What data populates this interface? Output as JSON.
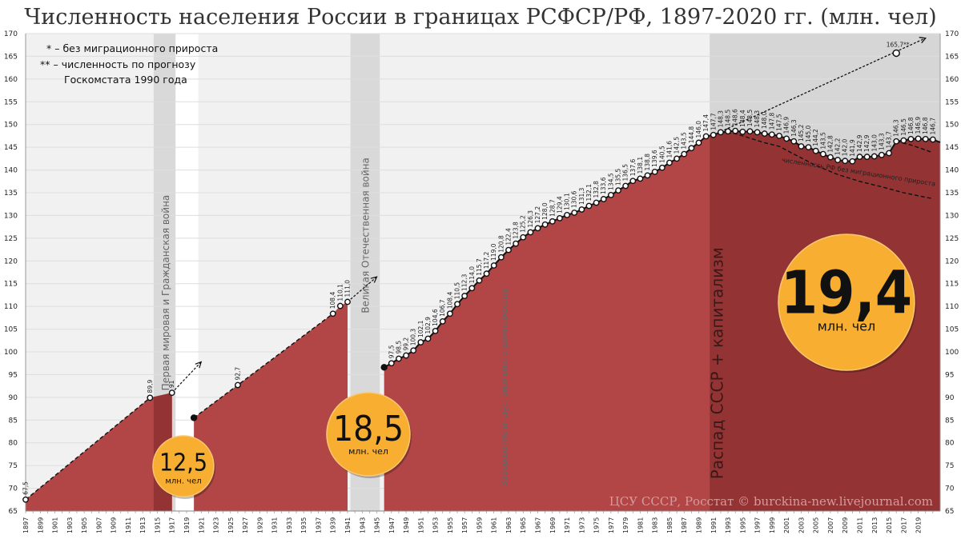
{
  "chart_data": {
    "type": "area",
    "title": "Численность населения России в границах РСФСР/РФ, 1897-2020 гг. (млн. чел)",
    "ylim": [
      65,
      170
    ],
    "y_ticks": [
      65,
      70,
      75,
      80,
      85,
      90,
      95,
      100,
      105,
      110,
      115,
      120,
      125,
      130,
      135,
      140,
      145,
      150,
      155,
      160,
      165,
      170
    ],
    "x_tick_labels": [
      "1897",
      "1899",
      "1901",
      "1903",
      "1905",
      "1907",
      "1909",
      "1911",
      "1913",
      "1915",
      "1917",
      "1919",
      "1921",
      "1923",
      "1925",
      "1927",
      "1929",
      "1931",
      "1933",
      "1935",
      "1937",
      "1939",
      "1941",
      "1943",
      "1945",
      "1947",
      "1949",
      "1951",
      "1953",
      "1955",
      "1957",
      "1959",
      "1961",
      "1963",
      "1965",
      "1967",
      "1969",
      "1971",
      "1973",
      "1975",
      "1977",
      "1979",
      "1981",
      "1983",
      "1985",
      "1987",
      "1989",
      "1991",
      "1993",
      "1995",
      "1997",
      "1999",
      "2001",
      "2003",
      "2005",
      "2007",
      "2009",
      "2011",
      "2013",
      "2015",
      "2017",
      "2019"
    ],
    "grid": true,
    "colors": {
      "area": "#b24646",
      "area_dark": "#943333",
      "line": "#111111",
      "bubble": "#f7ae31",
      "band_gray": "#d9d9d9",
      "plot_bg": "#f1f1f1"
    },
    "series": [
      {
        "name": "",
        "points": [
          {
            "x": 1897,
            "y": 67.5,
            "label": "67,5"
          },
          {
            "x": 1914,
            "y": 89.9,
            "label": "89,9"
          },
          {
            "x": 1917,
            "y": 91.0,
            "label": "91"
          },
          {
            "x": 1920,
            "y": 85.5,
            "label": ""
          },
          {
            "x": 1926,
            "y": 92.7,
            "label": "92,7"
          },
          {
            "x": 1939,
            "y": 108.4,
            "label": "108,4"
          },
          {
            "x": 1940,
            "y": 110.1,
            "label": "110,1"
          },
          {
            "x": 1941,
            "y": 111.0,
            "label": "111,0"
          },
          {
            "x": 1946,
            "y": 96.6,
            "label": ""
          },
          {
            "x": 1947,
            "y": 97.5,
            "label": "97,5"
          },
          {
            "x": 1948,
            "y": 98.5,
            "label": "98,5"
          },
          {
            "x": 1949,
            "y": 99.2,
            "label": "99,2"
          },
          {
            "x": 1950,
            "y": 100.3,
            "label": "100,3"
          },
          {
            "x": 1951,
            "y": 102.1,
            "label": "102,1"
          },
          {
            "x": 1952,
            "y": 102.9,
            "label": "102,9"
          },
          {
            "x": 1953,
            "y": 104.6,
            "label": "104,6"
          },
          {
            "x": 1954,
            "y": 106.7,
            "label": "106,7"
          },
          {
            "x": 1955,
            "y": 108.4,
            "label": "108,4"
          },
          {
            "x": 1956,
            "y": 110.5,
            "label": "110,5"
          },
          {
            "x": 1957,
            "y": 112.3,
            "label": "112,3"
          },
          {
            "x": 1958,
            "y": 114.0,
            "label": "114,0"
          },
          {
            "x": 1959,
            "y": 115.7,
            "label": "115,7"
          },
          {
            "x": 1960,
            "y": 117.2,
            "label": "117,2"
          },
          {
            "x": 1961,
            "y": 119.0,
            "label": "119,0"
          },
          {
            "x": 1962,
            "y": 120.8,
            "label": "120,8"
          },
          {
            "x": 1963,
            "y": 122.4,
            "label": "122,4"
          },
          {
            "x": 1964,
            "y": 123.8,
            "label": "123,8"
          },
          {
            "x": 1965,
            "y": 125.2,
            "label": "125,2"
          },
          {
            "x": 1966,
            "y": 126.3,
            "label": "126,3"
          },
          {
            "x": 1967,
            "y": 127.2,
            "label": "127,2"
          },
          {
            "x": 1968,
            "y": 128.0,
            "label": "128,0"
          },
          {
            "x": 1969,
            "y": 128.7,
            "label": "128,7"
          },
          {
            "x": 1970,
            "y": 129.4,
            "label": "129,4"
          },
          {
            "x": 1971,
            "y": 130.1,
            "label": "130,1"
          },
          {
            "x": 1972,
            "y": 130.6,
            "label": "130,6"
          },
          {
            "x": 1973,
            "y": 131.3,
            "label": "131,3"
          },
          {
            "x": 1974,
            "y": 132.1,
            "label": "132,1"
          },
          {
            "x": 1975,
            "y": 132.8,
            "label": "132,8"
          },
          {
            "x": 1976,
            "y": 133.6,
            "label": "133,6"
          },
          {
            "x": 1977,
            "y": 134.5,
            "label": "134,5"
          },
          {
            "x": 1978,
            "y": 135.5,
            "label": "135,5"
          },
          {
            "x": 1979,
            "y": 136.5,
            "label": "136,5"
          },
          {
            "x": 1980,
            "y": 137.6,
            "label": "137,6"
          },
          {
            "x": 1981,
            "y": 138.1,
            "label": "138,1"
          },
          {
            "x": 1982,
            "y": 138.8,
            "label": "138,8"
          },
          {
            "x": 1983,
            "y": 139.6,
            "label": "139,6"
          },
          {
            "x": 1984,
            "y": 140.5,
            "label": "140,5"
          },
          {
            "x": 1985,
            "y": 141.6,
            "label": "141,6"
          },
          {
            "x": 1986,
            "y": 142.5,
            "label": "142,5"
          },
          {
            "x": 1987,
            "y": 143.5,
            "label": "143,5"
          },
          {
            "x": 1988,
            "y": 144.8,
            "label": "144,8"
          },
          {
            "x": 1989,
            "y": 146.0,
            "label": "146,0"
          },
          {
            "x": 1990,
            "y": 147.4,
            "label": "147,4"
          },
          {
            "x": 1991,
            "y": 147.7,
            "label": "147,7"
          },
          {
            "x": 1992,
            "y": 148.3,
            "label": "148,3"
          },
          {
            "x": 1993,
            "y": 148.5,
            "label": "148,5"
          },
          {
            "x": 1994,
            "y": 148.6,
            "label": "148,6"
          },
          {
            "x": 1995,
            "y": 148.4,
            "label": "148,4"
          },
          {
            "x": 1996,
            "y": 148.5,
            "label": "148,5"
          },
          {
            "x": 1997,
            "y": 148.3,
            "label": "148,3"
          },
          {
            "x": 1998,
            "y": 148.0,
            "label": "148,0"
          },
          {
            "x": 1999,
            "y": 147.8,
            "label": "147,8"
          },
          {
            "x": 2000,
            "y": 147.5,
            "label": "147,5"
          },
          {
            "x": 2001,
            "y": 146.9,
            "label": "146,9"
          },
          {
            "x": 2002,
            "y": 146.3,
            "label": "146,3"
          },
          {
            "x": 2003,
            "y": 145.2,
            "label": "145,2"
          },
          {
            "x": 2004,
            "y": 145.0,
            "label": "145,0"
          },
          {
            "x": 2005,
            "y": 144.2,
            "label": "144,2"
          },
          {
            "x": 2006,
            "y": 143.5,
            "label": "143,5"
          },
          {
            "x": 2007,
            "y": 142.8,
            "label": "142,8"
          },
          {
            "x": 2008,
            "y": 142.2,
            "label": "142,2"
          },
          {
            "x": 2009,
            "y": 142.0,
            "label": "142,0"
          },
          {
            "x": 2010,
            "y": 141.9,
            "label": "141,9"
          },
          {
            "x": 2011,
            "y": 142.9,
            "label": "142,9"
          },
          {
            "x": 2012,
            "y": 142.9,
            "label": "142,9"
          },
          {
            "x": 2013,
            "y": 143.0,
            "label": "143,0"
          },
          {
            "x": 2014,
            "y": 143.3,
            "label": "143,3"
          },
          {
            "x": 2015,
            "y": 143.7,
            "label": "143,7"
          },
          {
            "x": 2016,
            "y": 146.3,
            "label": "146,3"
          },
          {
            "x": 2017,
            "y": 146.5,
            "label": "146,5"
          },
          {
            "x": 2018,
            "y": 146.8,
            "label": "146,8"
          },
          {
            "x": 2019,
            "y": 146.9,
            "label": "146,9"
          },
          {
            "x": 2020,
            "y": 146.8,
            "label": "146,8"
          },
          {
            "x": 2021,
            "y": 146.7,
            "label": "146,7"
          }
        ]
      },
      {
        "name": "численность РФ без миграционного прироста",
        "style": "dashed",
        "points": [
          [
            1992,
            148.3
          ],
          [
            1994,
            148.0
          ],
          [
            1996,
            147.0
          ],
          [
            1998,
            146.0
          ],
          [
            2000,
            145.2
          ],
          [
            2002,
            143.5
          ],
          [
            2005,
            141.0
          ],
          [
            2008,
            139.0
          ],
          [
            2011,
            137.5
          ],
          [
            2014,
            136.3
          ],
          [
            2017,
            135.0
          ],
          [
            2020,
            134.0
          ],
          [
            2021,
            133.7
          ]
        ]
      },
      {
        "name": "",
        "style": "dashed",
        "points": [
          [
            2016,
            146.3
          ],
          [
            2018,
            145.5
          ],
          [
            2020,
            144.4
          ],
          [
            2021,
            143.8
          ]
        ]
      },
      {
        "name": "",
        "style": "dashed",
        "points": [
          [
            1897,
            67.5
          ],
          [
            1914,
            89.9
          ]
        ]
      },
      {
        "name": "",
        "style": "dashed",
        "points": [
          [
            1920,
            85.5
          ],
          [
            1926,
            92.7
          ],
          [
            1939,
            108.4
          ]
        ]
      }
    ],
    "forecast": {
      "points": [
        [
          1991,
          147.7
        ],
        [
          2016,
          165.7
        ]
      ],
      "label": "165,7**",
      "arrow_end": [
        2020,
        169.0
      ]
    },
    "war_arrows": [
      {
        "from": [
          1917,
          91.0
        ],
        "to": [
          1921,
          97.8
        ]
      },
      {
        "from": [
          1941,
          111.0
        ],
        "to": [
          1945,
          116.5
        ]
      }
    ],
    "bands": [
      {
        "from": 1914.5,
        "to": 1917.5,
        "style": "gray"
      },
      {
        "from": 1917.5,
        "to": 1920.6,
        "style": "light"
      },
      {
        "from": 1941.4,
        "to": 1945.4,
        "style": "gray"
      },
      {
        "from": 1990.5,
        "to": 2022,
        "style": "dark"
      }
    ],
    "annotations": {
      "legend_line1": "* – без миграционного прироста",
      "legend_line2": "** – численность по прогнозу",
      "legend_line3": "Госкомстата 1990 года",
      "ww1": "Первая мировая и Гражданская война",
      "ww2": "Великая Отечественная война",
      "transition": "Завершение индустриального демперехода",
      "collapse": "Распад СССР + капитализм",
      "no_migration": "численность РФ без миграционного прироста",
      "source": "ЦСУ СССР, Росстат © burckina-new.livejournal.com"
    },
    "bubbles": [
      {
        "value": "12,5",
        "unit": "млн. чел"
      },
      {
        "value": "18,5",
        "unit": "млн. чел"
      },
      {
        "value": "19,4",
        "unit": "млн. чел"
      }
    ]
  }
}
